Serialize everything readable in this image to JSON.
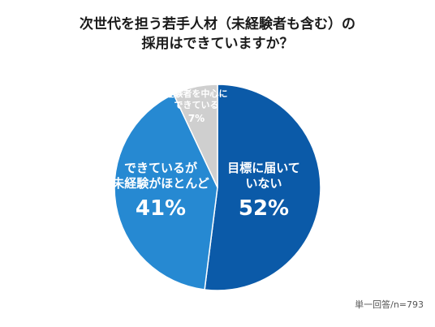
{
  "chart_data": {
    "type": "pie",
    "title_lines": [
      "次世代を担う若手人材（未経験者も含む）の",
      "採用はできていますか？"
    ],
    "slices": [
      {
        "label_lines": [
          "目標に届いて",
          "いない"
        ],
        "value": 52,
        "value_label": "52%",
        "color": "#0b5aa8",
        "label_color": "#ffffff"
      },
      {
        "label_lines": [
          "できているが",
          "未経験がほとんど"
        ],
        "value": 41,
        "value_label": "41%",
        "color": "#2689d2",
        "label_color": "#ffffff"
      },
      {
        "label_lines": [
          "経験者を中心に",
          "できている"
        ],
        "value": 7,
        "value_label": "7%",
        "color": "#cfcfcf",
        "label_color": "#ffffff"
      }
    ],
    "note": "単一回答/n=793"
  }
}
